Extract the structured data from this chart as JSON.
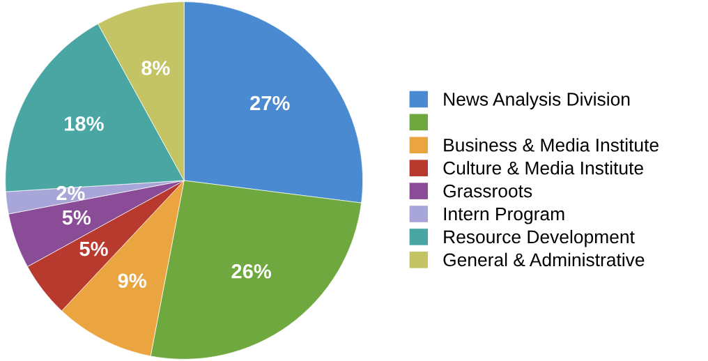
{
  "chart_data": {
    "type": "pie",
    "categories": [
      "News Analysis Division",
      null,
      "Business & Media Institute",
      "Culture & Media Institute",
      "Grassroots",
      "Intern Program",
      "Resource Development",
      "General & Administrative"
    ],
    "values": [
      27,
      26,
      9,
      5,
      5,
      2,
      18,
      8
    ],
    "value_labels": [
      "27%",
      "26%",
      "9%",
      "5%",
      "5%",
      "2%",
      "18%",
      "8%"
    ],
    "colors": [
      "#4a8ad0",
      "#6fa83e",
      "#eba540",
      "#b83a2e",
      "#8a4c96",
      "#a8a6d8",
      "#4aa6a2",
      "#c4c464"
    ],
    "legend": "right"
  }
}
